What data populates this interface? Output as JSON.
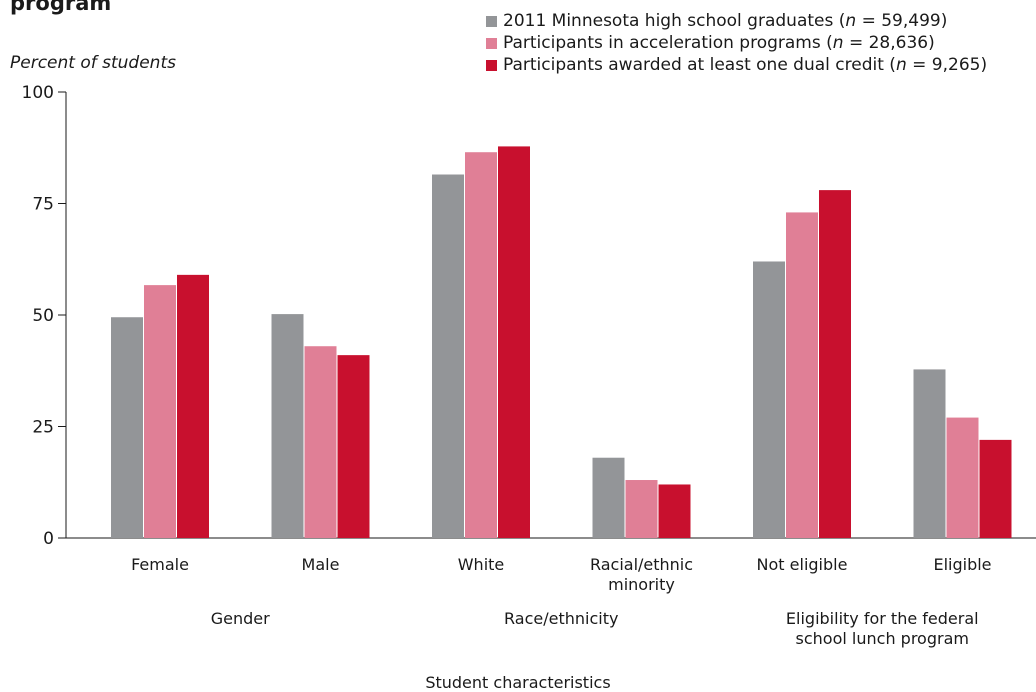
{
  "title_fragment": "program",
  "legend": [
    {
      "name": "2011 Minnesota high school graduates",
      "n_label": "n",
      "n_value": " = 59,499)",
      "color": "#939598"
    },
    {
      "name": "Participants in acceleration programs",
      "n_label": "n",
      "n_value": " = 28,636)",
      "color": "#e07f96"
    },
    {
      "name": "Participants awarded at least one dual credit",
      "n_label": "n",
      "n_value": " = 9,265)",
      "color": "#c8102e"
    }
  ],
  "chart_data": {
    "type": "bar",
    "title": "",
    "ylabel": "Percent of students",
    "xlabel": "Student characteristics",
    "ylim": [
      0,
      100
    ],
    "yticks": [
      "0",
      "25",
      "50",
      "75",
      "100"
    ],
    "categories": [
      "Female",
      "Male",
      "White",
      "Racial/ethnic minority",
      "Not eligible",
      "Eligible"
    ],
    "category_lines": [
      [
        "Female"
      ],
      [
        "Male"
      ],
      [
        "White"
      ],
      [
        "Racial/ethnic",
        "minority"
      ],
      [
        "Not eligible"
      ],
      [
        "Eligible"
      ]
    ],
    "groups": [
      {
        "lines": [
          "Gender"
        ],
        "categories": [
          0,
          1
        ]
      },
      {
        "lines": [
          "Race/ethnicity"
        ],
        "categories": [
          2,
          3
        ]
      },
      {
        "lines": [
          "Eligibility for the federal",
          "school lunch program"
        ],
        "categories": [
          4,
          5
        ]
      }
    ],
    "series": [
      {
        "name": "2011 Minnesota high school graduates (n = 59,499)",
        "color": "#939598",
        "values": [
          49.5,
          50.2,
          81.5,
          18.0,
          62.0,
          37.8
        ]
      },
      {
        "name": "Participants in acceleration programs (n = 28,636)",
        "color": "#e07f96",
        "values": [
          56.7,
          43.0,
          86.5,
          13.0,
          73.0,
          27.0
        ]
      },
      {
        "name": "Participants awarded at least one dual credit (n = 9,265)",
        "color": "#c8102e",
        "values": [
          59.0,
          41.0,
          87.8,
          12.0,
          78.0,
          22.0
        ]
      }
    ],
    "grid": false,
    "legend_position": "top-right"
  }
}
